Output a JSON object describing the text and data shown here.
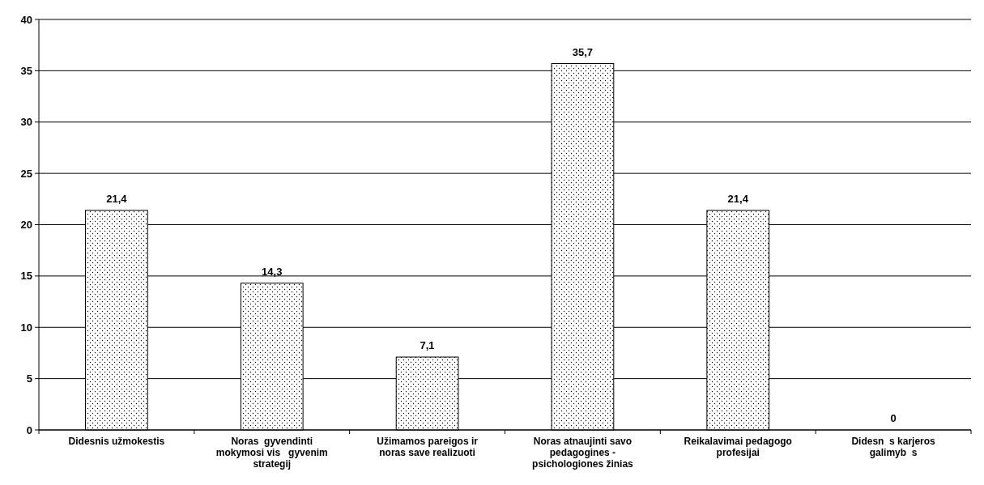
{
  "chart_data": {
    "type": "bar",
    "categories": [
      "Didesnis užmokestis",
      "Noras  gyvendinti mokymosi vis   gyvenim strategij",
      "Užimamos pareigos ir noras save realizuoti",
      "Noras atnaujinti savo pedagogines - psichologiones žinias",
      "Reikalavimai pedagogo profesijai",
      "Didesn  s karjeros galimyb  s"
    ],
    "values": [
      21.4,
      14.3,
      7.1,
      35.7,
      21.4,
      0
    ],
    "value_labels": [
      "21,4",
      "14,3",
      "7,1",
      "35,7",
      "21,4",
      "0"
    ],
    "color": "#000000",
    "ylim": [
      0,
      40
    ],
    "yticks": [
      0,
      5,
      10,
      15,
      20,
      25,
      30,
      35,
      40
    ],
    "grid": "y"
  }
}
